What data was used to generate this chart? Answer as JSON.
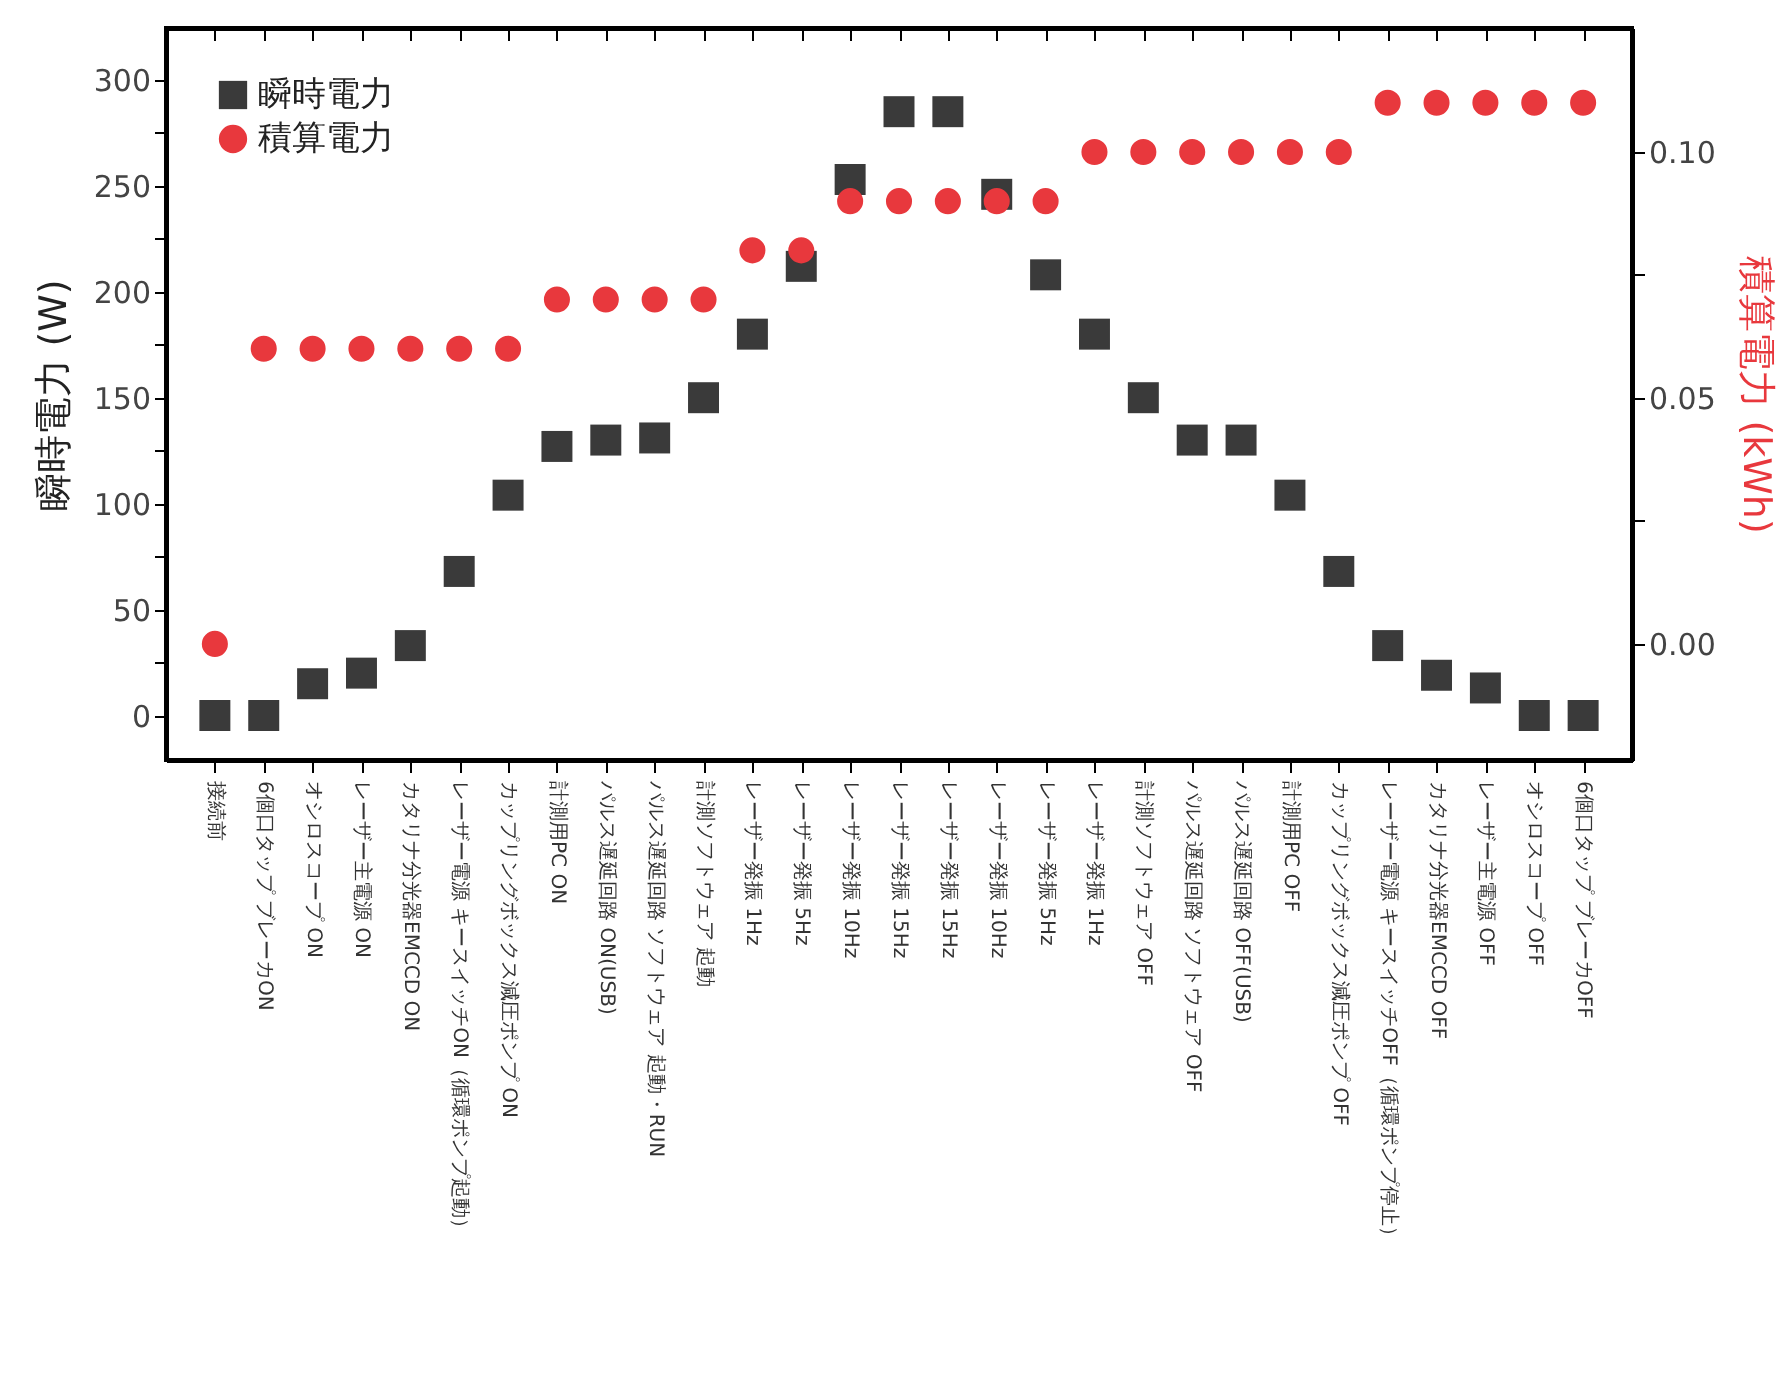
{
  "chart_data": {
    "type": "scatter",
    "ylabel": "瞬時電力 (W)",
    "y2label": "積算電力 (kWh)",
    "legend": "top left",
    "grid": false,
    "categories": [
      "接続前",
      "6個口タップ ブレーカON",
      "オシロスコープ ON",
      "レーザー主電源 ON",
      "カタリナ分光器EMCCD ON",
      "レーザー電源 キースイッチON（循環ポンプ起動）",
      "カップリングボックス減圧ポンプ ON",
      "計測用PC ON",
      "パルス遅延回路 ON(USB)",
      "パルス遅延回路 ソフトウェア 起動・RUN",
      "計測ソフトウェア 起動",
      "レーザー発振 1Hz",
      "レーザー発振 5Hz",
      "レーザー発振 10Hz",
      "レーザー発振 15Hz",
      "レーザー発振 15Hz",
      "レーザー発振 10Hz",
      "レーザー発振 5Hz",
      "レーザー発振 1Hz",
      "計測ソフトウェア OFF",
      "パルス遅延回路 ソフトウェア OFF",
      "パルス遅延回路 OFF(USB)",
      "計測用PC OFF",
      "カップリングボックス減圧ポンプ OFF",
      "レーザー電源 キースイッチOFF（循環ポンプ停止）",
      "カタリナ分光器EMCCD OFF",
      "レーザー主電源 OFF",
      "オシロスコープ OFF",
      "6個口タップ ブレーカOFF"
    ],
    "ylim": [
      -21,
      324.5
    ],
    "yticks": [
      0,
      {
        "value": 25,
        "label": null
      },
      50,
      {
        "value": 75,
        "label": null
      },
      100,
      {
        "value": 125,
        "label": null
      },
      150,
      {
        "value": 175,
        "label": null
      },
      200,
      {
        "value": 225,
        "label": null
      },
      250,
      {
        "value": 275,
        "label": null
      },
      300
    ],
    "y2lim": [
      -0.0236,
      0.1252
    ],
    "y2ticks": [
      {
        "value": 0,
        "label": "0.00"
      },
      {
        "value": 0.025,
        "label": null
      },
      {
        "value": 0.05,
        "label": "0.05"
      },
      {
        "value": 0.075,
        "label": null
      },
      {
        "value": 0.1,
        "label": "0.10"
      }
    ],
    "series": [
      {
        "name": "瞬時電力",
        "color": "#3a3a3a",
        "marker": "square",
        "values": [
          0,
          0,
          15,
          20,
          33,
          68,
          104,
          127,
          130,
          131,
          150,
          180,
          212,
          253,
          285,
          285,
          246,
          208,
          180,
          150,
          130,
          130,
          104,
          68,
          33,
          19,
          13,
          0,
          0
        ]
      },
      {
        "name": "積算電力",
        "color": "#e8383d",
        "marker": "circle",
        "axis": "y2",
        "values": [
          0,
          0.06,
          0.06,
          0.06,
          0.06,
          0.06,
          0.06,
          0.07,
          0.07,
          0.07,
          0.07,
          0.08,
          0.08,
          0.09,
          0.09,
          0.09,
          0.09,
          0.09,
          0.1,
          0.1,
          0.1,
          0.1,
          0.1,
          0.1,
          0.11,
          0.11,
          0.11,
          0.11,
          0.11
        ]
      }
    ]
  }
}
